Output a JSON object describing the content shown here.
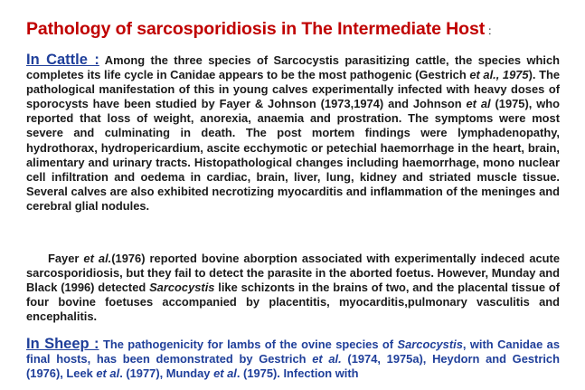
{
  "title": {
    "text": "Pathology of sarcosporidiosis in The Intermediate Host",
    "colon": ":"
  },
  "cattle": {
    "heading": "In Cattle :",
    "t1": " Among the three species of Sarcocystis parasitizing cattle, the species which completes its life cycle in Canidae appears to be the most pathogenic (Gestrich ",
    "i1": "et al., 1975",
    "t2": "). The pathological manifestation of this in young calves experimentally infected with heavy doses of sporocysts have been studied by Fayer & Johnson (1973,1974) and Johnson ",
    "i2": "et al",
    "t3": " (1975), who reported that loss of weight, anorexia, anaemia and prostration. The symptoms were most severe and culminating in death. The post mortem findings were lymphadenopathy, hydrothorax, hydropericardium, ascite ecchymotic or petechial haemorrhage in the heart, brain, alimentary and urinary tracts. Histopathological changes including haemorrhage, mono nuclear cell infiltration and oedema in cardiac, brain, liver, lung, kidney and striated muscle tissue. Several calves are also exhibited necrotizing  myocarditis and inflammation of the meninges and cerebral glial nodules."
  },
  "fayer": {
    "t1": "Fayer ",
    "i1": "et al.",
    "t2": "(1976) reported bovine aborption associated with experimentally indeced acute sarcosporidiosis, but they fail to detect the parasite in the aborted foetus. However, Munday and Black (1996) detected ",
    "i2": "Sarcocystis",
    "t3": " like schizonts in the brains of two, and the placental tissue of four bovine foetuses accompanied by placentitis, myocarditis,pulmonary vasculitis and encephalitis."
  },
  "sheep": {
    "heading": "In Sheep :",
    "t1": " The pathogenicity for lambs of the ovine species of ",
    "i1": "Sarcocystis",
    "t2": ", with Canidae as final hosts, has been demonstrated by Gestrich ",
    "i2": "et al.",
    "t3": " (1974, 1975a), Heydorn and Gestrich (1976), Leek ",
    "i3": "et al",
    "t4": ". (1977), Munday ",
    "i4": "et al",
    "t5": ". (1975). Infection with"
  }
}
